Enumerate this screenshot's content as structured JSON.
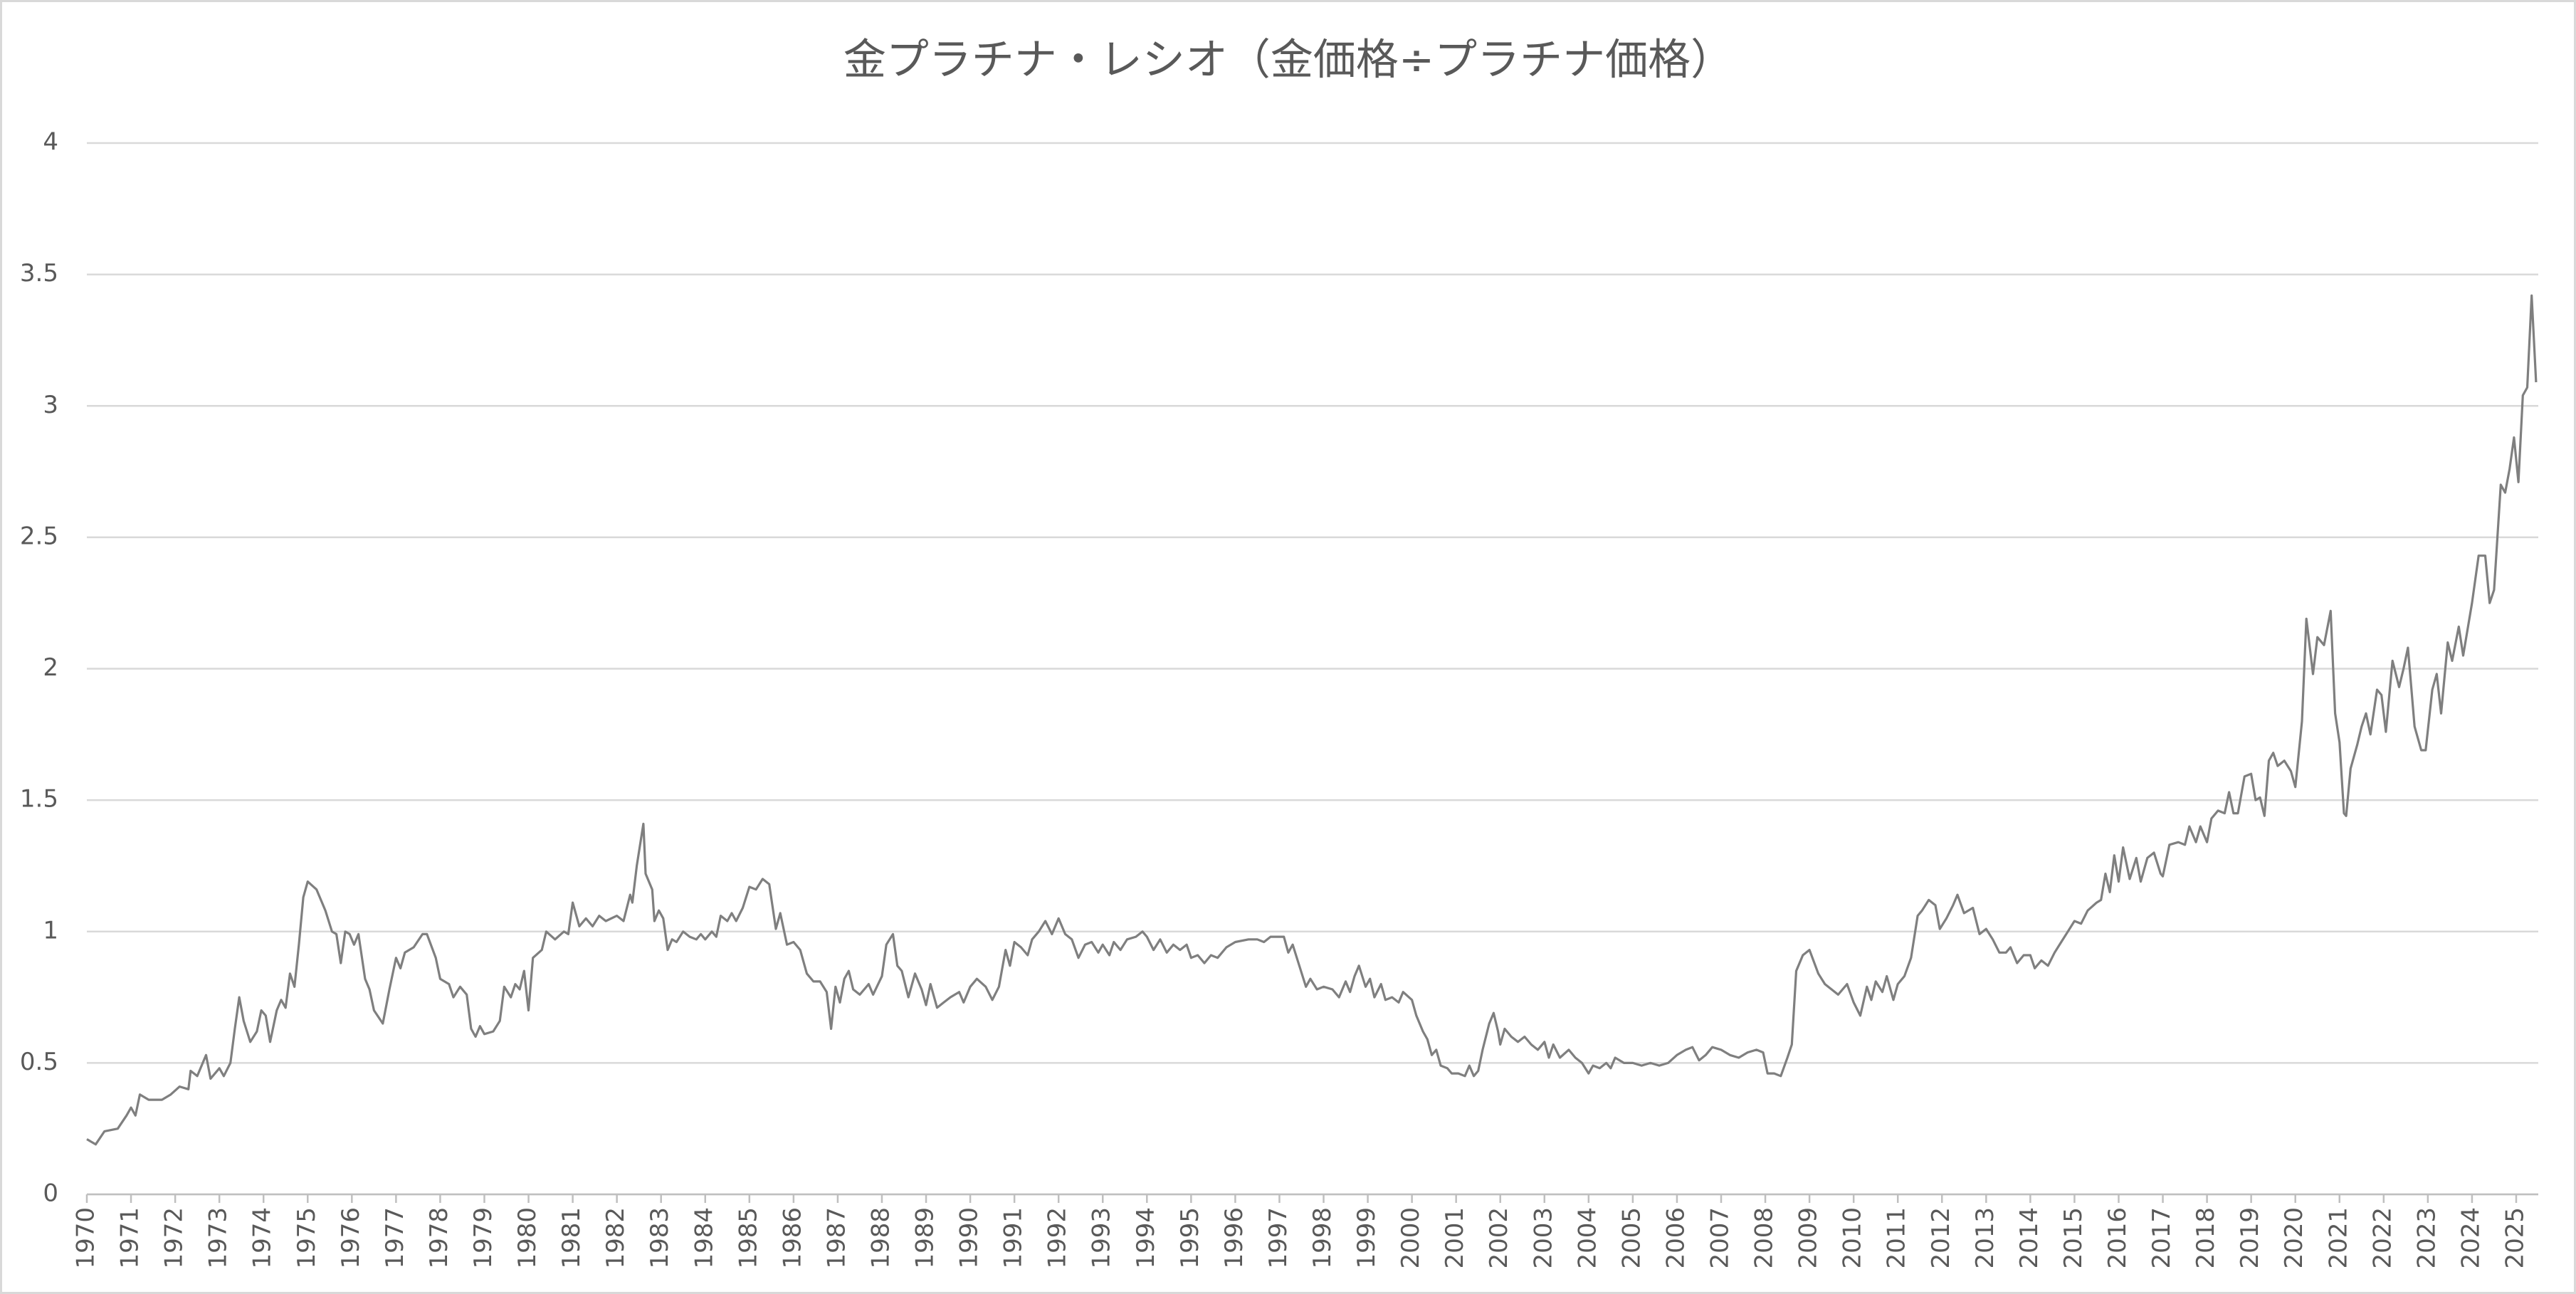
{
  "chart_data": {
    "type": "line",
    "title": "金プラチナ・レシオ（金価格÷プラチナ価格）",
    "x": [
      1970,
      1970.2,
      1970.4,
      1970.7,
      1970.9,
      1971,
      1971.1,
      1971.2,
      1971.4,
      1971.7,
      1971.9,
      1972.1,
      1972.3,
      1972.35,
      1972.5,
      1972.7,
      1972.8,
      1973,
      1973.1,
      1973.25,
      1973.35,
      1973.45,
      1973.55,
      1973.7,
      1973.85,
      1973.95,
      1974.05,
      1974.15,
      1974.3,
      1974.4,
      1974.5,
      1974.6,
      1974.7,
      1974.8,
      1974.9,
      1975,
      1975.2,
      1975.4,
      1975.55,
      1975.65,
      1975.75,
      1975.85,
      1975.95,
      1976.05,
      1976.15,
      1976.3,
      1976.4,
      1976.5,
      1976.7,
      1976.85,
      1977,
      1977.1,
      1977.2,
      1977.4,
      1977.6,
      1977.7,
      1977.9,
      1978,
      1978.2,
      1978.3,
      1978.45,
      1978.6,
      1978.7,
      1978.8,
      1978.9,
      1979,
      1979.2,
      1979.35,
      1979.45,
      1979.6,
      1979.7,
      1979.8,
      1979.9,
      1980,
      1980.1,
      1980.3,
      1980.4,
      1980.6,
      1980.8,
      1980.9,
      1981,
      1981.15,
      1981.3,
      1981.45,
      1981.6,
      1981.75,
      1982,
      1982.15,
      1982.3,
      1982.35,
      1982.45,
      1982.6,
      1982.65,
      1982.8,
      1982.85,
      1982.95,
      1983.05,
      1983.15,
      1983.25,
      1983.35,
      1983.5,
      1983.65,
      1983.8,
      1983.9,
      1984,
      1984.15,
      1984.25,
      1984.35,
      1984.5,
      1984.6,
      1984.7,
      1984.85,
      1985,
      1985.15,
      1985.3,
      1985.45,
      1985.6,
      1985.7,
      1985.85,
      1986,
      1986.15,
      1986.3,
      1986.45,
      1986.6,
      1986.75,
      1986.85,
      1986.95,
      1987.05,
      1987.15,
      1987.25,
      1987.35,
      1987.5,
      1987.7,
      1987.8,
      1988,
      1988.1,
      1988.25,
      1988.35,
      1988.45,
      1988.6,
      1988.75,
      1988.9,
      1989,
      1989.1,
      1989.25,
      1989.4,
      1989.55,
      1989.75,
      1989.85,
      1990,
      1990.15,
      1990.35,
      1990.5,
      1990.65,
      1990.8,
      1990.9,
      1991,
      1991.15,
      1991.3,
      1991.4,
      1991.55,
      1991.7,
      1991.85,
      1992,
      1992.15,
      1992.3,
      1992.45,
      1992.6,
      1992.75,
      1992.9,
      1993,
      1993.15,
      1993.25,
      1993.4,
      1993.55,
      1993.75,
      1993.9,
      1994,
      1994.15,
      1994.3,
      1994.45,
      1994.6,
      1994.75,
      1994.9,
      1995,
      1995.15,
      1995.3,
      1995.45,
      1995.6,
      1995.8,
      1996,
      1996.3,
      1996.5,
      1996.65,
      1996.8,
      1997,
      1997.1,
      1997.2,
      1997.3,
      1997.45,
      1997.6,
      1997.7,
      1997.85,
      1998,
      1998.2,
      1998.35,
      1998.5,
      1998.6,
      1998.7,
      1998.8,
      1998.95,
      1999.05,
      1999.15,
      1999.3,
      1999.4,
      1999.55,
      1999.7,
      1999.8,
      2000,
      2000.1,
      2000.25,
      2000.35,
      2000.45,
      2000.55,
      2000.65,
      2000.8,
      2000.9,
      2001.05,
      2001.2,
      2001.3,
      2001.4,
      2001.5,
      2001.6,
      2001.75,
      2001.85,
      2001.95,
      2002,
      2002.1,
      2002.25,
      2002.4,
      2002.55,
      2002.7,
      2002.85,
      2003,
      2003.1,
      2003.2,
      2003.35,
      2003.55,
      2003.7,
      2003.85,
      2004,
      2004.1,
      2004.25,
      2004.4,
      2004.5,
      2004.6,
      2004.8,
      2005,
      2005.2,
      2005.4,
      2005.6,
      2005.8,
      2006,
      2006.2,
      2006.35,
      2006.5,
      2006.65,
      2006.8,
      2007,
      2007.2,
      2007.4,
      2007.6,
      2007.8,
      2007.95,
      2008.05,
      2008.2,
      2008.35,
      2008.5,
      2008.6,
      2008.7,
      2008.85,
      2009,
      2009.2,
      2009.35,
      2009.5,
      2009.65,
      2009.85,
      2010,
      2010.15,
      2010.3,
      2010.4,
      2010.5,
      2010.65,
      2010.75,
      2010.9,
      2011,
      2011.15,
      2011.3,
      2011.45,
      2011.55,
      2011.7,
      2011.85,
      2011.95,
      2012.1,
      2012.25,
      2012.35,
      2012.5,
      2012.7,
      2012.85,
      2013,
      2013.15,
      2013.3,
      2013.45,
      2013.55,
      2013.7,
      2013.85,
      2014,
      2014.1,
      2014.25,
      2014.4,
      2014.55,
      2014.7,
      2014.85,
      2015,
      2015.15,
      2015.3,
      2015.5,
      2015.6,
      2015.7,
      2015.8,
      2015.9,
      2016,
      2016.1,
      2016.25,
      2016.4,
      2016.5,
      2016.65,
      2016.8,
      2016.95,
      2017,
      2017.15,
      2017.35,
      2017.5,
      2017.6,
      2017.75,
      2017.85,
      2018,
      2018.1,
      2018.25,
      2018.4,
      2018.5,
      2018.6,
      2018.7,
      2018.85,
      2019,
      2019.1,
      2019.2,
      2019.3,
      2019.4,
      2019.5,
      2019.6,
      2019.75,
      2019.9,
      2020,
      2020.15,
      2020.25,
      2020.4,
      2020.5,
      2020.65,
      2020.8,
      2020.9,
      2021,
      2021.1,
      2021.15,
      2021.25,
      2021.4,
      2021.5,
      2021.6,
      2021.7,
      2021.85,
      2021.95,
      2022.05,
      2022.2,
      2022.35,
      2022.45,
      2022.55,
      2022.7,
      2022.85,
      2022.95,
      2023.1,
      2023.2,
      2023.3,
      2023.45,
      2023.55,
      2023.7,
      2023.8,
      2024,
      2024.15,
      2024.3,
      2024.4,
      2024.5,
      2024.65,
      2024.75,
      2024.85,
      2024.95,
      2025.05,
      2025.15,
      2025.25,
      2025.35,
      2025.45
    ],
    "values": [
      0.21,
      0.19,
      0.24,
      0.25,
      0.3,
      0.33,
      0.3,
      0.38,
      0.36,
      0.36,
      0.38,
      0.41,
      0.4,
      0.47,
      0.45,
      0.53,
      0.44,
      0.48,
      0.45,
      0.5,
      0.63,
      0.75,
      0.66,
      0.58,
      0.62,
      0.7,
      0.68,
      0.58,
      0.7,
      0.74,
      0.71,
      0.84,
      0.79,
      0.95,
      1.13,
      1.19,
      1.16,
      1.08,
      1.0,
      0.99,
      0.88,
      1.0,
      0.99,
      0.95,
      0.99,
      0.82,
      0.78,
      0.7,
      0.65,
      0.78,
      0.9,
      0.86,
      0.92,
      0.94,
      0.99,
      0.99,
      0.9,
      0.82,
      0.8,
      0.75,
      0.79,
      0.76,
      0.63,
      0.6,
      0.64,
      0.61,
      0.62,
      0.66,
      0.79,
      0.75,
      0.8,
      0.78,
      0.85,
      0.7,
      0.9,
      0.93,
      1.0,
      0.97,
      1.0,
      0.99,
      1.11,
      1.02,
      1.05,
      1.02,
      1.06,
      1.04,
      1.06,
      1.04,
      1.14,
      1.11,
      1.25,
      1.41,
      1.22,
      1.16,
      1.04,
      1.08,
      1.05,
      0.93,
      0.97,
      0.96,
      1.0,
      0.98,
      0.97,
      0.99,
      0.97,
      1.0,
      0.98,
      1.06,
      1.04,
      1.07,
      1.04,
      1.09,
      1.17,
      1.16,
      1.2,
      1.18,
      1.01,
      1.07,
      0.95,
      0.96,
      0.93,
      0.84,
      0.81,
      0.81,
      0.77,
      0.63,
      0.79,
      0.73,
      0.82,
      0.85,
      0.78,
      0.76,
      0.8,
      0.76,
      0.83,
      0.95,
      0.99,
      0.87,
      0.85,
      0.75,
      0.84,
      0.78,
      0.72,
      0.8,
      0.71,
      0.73,
      0.75,
      0.77,
      0.73,
      0.79,
      0.82,
      0.79,
      0.74,
      0.79,
      0.93,
      0.87,
      0.96,
      0.94,
      0.91,
      0.97,
      1.0,
      1.04,
      0.99,
      1.05,
      0.99,
      0.97,
      0.9,
      0.95,
      0.96,
      0.92,
      0.95,
      0.91,
      0.96,
      0.93,
      0.97,
      0.98,
      1.0,
      0.98,
      0.93,
      0.97,
      0.92,
      0.95,
      0.93,
      0.95,
      0.9,
      0.91,
      0.88,
      0.91,
      0.9,
      0.94,
      0.96,
      0.97,
      0.97,
      0.96,
      0.98,
      0.98,
      0.98,
      0.92,
      0.95,
      0.87,
      0.79,
      0.82,
      0.78,
      0.79,
      0.78,
      0.75,
      0.81,
      0.77,
      0.83,
      0.87,
      0.79,
      0.82,
      0.75,
      0.8,
      0.74,
      0.75,
      0.73,
      0.77,
      0.74,
      0.68,
      0.62,
      0.59,
      0.53,
      0.55,
      0.49,
      0.48,
      0.46,
      0.46,
      0.45,
      0.49,
      0.45,
      0.47,
      0.55,
      0.65,
      0.69,
      0.62,
      0.57,
      0.63,
      0.6,
      0.58,
      0.6,
      0.57,
      0.55,
      0.58,
      0.52,
      0.57,
      0.52,
      0.55,
      0.52,
      0.5,
      0.46,
      0.49,
      0.48,
      0.5,
      0.48,
      0.52,
      0.5,
      0.5,
      0.49,
      0.5,
      0.49,
      0.5,
      0.53,
      0.55,
      0.56,
      0.51,
      0.53,
      0.56,
      0.55,
      0.53,
      0.52,
      0.54,
      0.55,
      0.54,
      0.46,
      0.46,
      0.45,
      0.52,
      0.57,
      0.85,
      0.91,
      0.93,
      0.84,
      0.8,
      0.78,
      0.76,
      0.8,
      0.73,
      0.68,
      0.79,
      0.74,
      0.81,
      0.77,
      0.83,
      0.74,
      0.8,
      0.83,
      0.9,
      1.06,
      1.08,
      1.12,
      1.1,
      1.01,
      1.05,
      1.1,
      1.14,
      1.07,
      1.09,
      0.99,
      1.01,
      0.97,
      0.92,
      0.92,
      0.94,
      0.88,
      0.91,
      0.91,
      0.86,
      0.89,
      0.87,
      0.92,
      0.96,
      1.0,
      1.04,
      1.03,
      1.08,
      1.11,
      1.12,
      1.22,
      1.15,
      1.29,
      1.19,
      1.32,
      1.2,
      1.28,
      1.19,
      1.28,
      1.3,
      1.22,
      1.21,
      1.33,
      1.34,
      1.33,
      1.4,
      1.34,
      1.4,
      1.34,
      1.43,
      1.46,
      1.45,
      1.53,
      1.45,
      1.45,
      1.59,
      1.6,
      1.5,
      1.51,
      1.44,
      1.65,
      1.68,
      1.63,
      1.65,
      1.61,
      1.55,
      1.8,
      2.19,
      1.98,
      2.12,
      2.09,
      2.22,
      1.83,
      1.72,
      1.45,
      1.44,
      1.62,
      1.71,
      1.78,
      1.83,
      1.75,
      1.92,
      1.9,
      1.76,
      2.03,
      1.93,
      2.0,
      2.08,
      1.78,
      1.69,
      1.69,
      1.92,
      1.98,
      1.83,
      2.1,
      2.03,
      2.16,
      2.05,
      2.25,
      2.43,
      2.43,
      2.25,
      2.3,
      2.7,
      2.67,
      2.76,
      2.88,
      2.71,
      3.04,
      3.07,
      3.42,
      3.09
    ],
    "color": "#7f7f7f",
    "xlim": [
      1970,
      2025.5
    ],
    "xticks": [
      1970,
      1971,
      1972,
      1973,
      1974,
      1975,
      1976,
      1977,
      1978,
      1979,
      1980,
      1981,
      1982,
      1983,
      1984,
      1985,
      1986,
      1987,
      1988,
      1989,
      1990,
      1991,
      1992,
      1993,
      1994,
      1995,
      1996,
      1997,
      1998,
      1999,
      2000,
      2001,
      2002,
      2003,
      2004,
      2005,
      2006,
      2007,
      2008,
      2009,
      2010,
      2011,
      2012,
      2013,
      2014,
      2015,
      2016,
      2017,
      2018,
      2019,
      2020,
      2021,
      2022,
      2023,
      2024,
      2025
    ],
    "ylim": [
      0,
      4
    ],
    "yticks": [
      0,
      0.5,
      1,
      1.5,
      2,
      2.5,
      3,
      3.5,
      4
    ],
    "grid": true
  }
}
